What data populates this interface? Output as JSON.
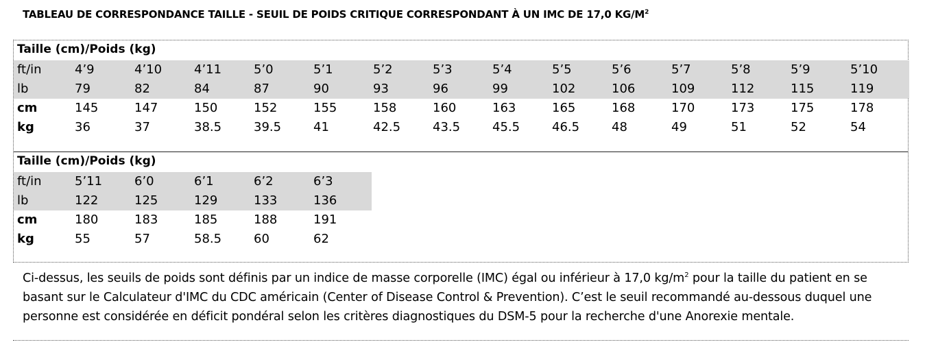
{
  "title": {
    "text": "TABLEAU DE CORRESPONDANCE TAILLE - SEUIL DE POIDS CRITIQUE CORRESPONDANT À UN IMC DE 17,0 KG/M",
    "sup": "2"
  },
  "table1": {
    "header": "Taille (cm)/Poids (kg)",
    "rows": [
      {
        "label": "ft/in",
        "values": [
          "4’9",
          "4’10",
          "4’11",
          "5’0",
          "5’1",
          "5’2",
          "5’3",
          "5’4",
          "5’5",
          "5’6",
          "5’7",
          "5’8",
          "5’9",
          "5’10"
        ]
      },
      {
        "label": "lb",
        "values": [
          "79",
          "82",
          "84",
          "87",
          "90",
          "93",
          "96",
          "99",
          "102",
          "106",
          "109",
          "112",
          "115",
          "119"
        ]
      },
      {
        "label": "cm",
        "values": [
          "145",
          "147",
          "150",
          "152",
          "155",
          "158",
          "160",
          "163",
          "165",
          "168",
          "170",
          "173",
          "175",
          "178"
        ]
      },
      {
        "label": "kg",
        "values": [
          "36",
          "37",
          "38.5",
          "39.5",
          "41",
          "42.5",
          "43.5",
          "45.5",
          "46.5",
          "48",
          "49",
          "51",
          "52",
          "54"
        ]
      }
    ]
  },
  "table2": {
    "header": "Taille (cm)/Poids (kg)",
    "rows": [
      {
        "label": "ft/in",
        "values": [
          "5’11",
          "6’0",
          "6’1",
          "6’2",
          "6’3"
        ]
      },
      {
        "label": "lb",
        "values": [
          "122",
          "125",
          "129",
          "133",
          "136"
        ]
      },
      {
        "label": "cm",
        "values": [
          "180",
          "183",
          "185",
          "188",
          "191"
        ]
      },
      {
        "label": "kg",
        "values": [
          "55",
          "57",
          "58.5",
          "60",
          "62"
        ]
      }
    ]
  },
  "note": {
    "before": "Ci-dessus, les seuils de poids sont définis par un indice de masse corporelle (IMC) égal ou inférieur à 17,0 kg/m",
    "sup": "2",
    "after": " pour la taille du patient en se basant sur le Calculateur d'IMC du CDC américain (Center of Disease Control & Prevention). C’est le seuil recommandé au-dessous duquel une personne est considérée en déficit pondéral selon les critères diagnostiques du DSM-5 pour la recherche d'une Anorexie mentale."
  }
}
